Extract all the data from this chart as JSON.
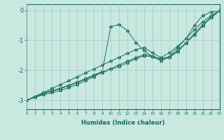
{
  "xlabel": "Humidex (Indice chaleur)",
  "background_color": "#c8e8e0",
  "line_color": "#1a6b5a",
  "grid_color": "#a0c8c0",
  "xlim": [
    0,
    23
  ],
  "ylim": [
    -3.3,
    0.2
  ],
  "xticks": [
    0,
    1,
    2,
    3,
    4,
    5,
    6,
    7,
    8,
    9,
    10,
    11,
    12,
    13,
    14,
    15,
    16,
    17,
    18,
    19,
    20,
    21,
    22,
    23
  ],
  "ytick_vals": [
    0,
    -1,
    -2,
    -3
  ],
  "ytick_labels": [
    "0",
    "-1",
    "-2",
    "-3"
  ],
  "series": [
    {
      "x": [
        0,
        1,
        2,
        3,
        4,
        5,
        6,
        7,
        8,
        9,
        10,
        11,
        12,
        13,
        14,
        15,
        16,
        17,
        18,
        19,
        20,
        21,
        22,
        23
      ],
      "y": [
        -3.0,
        -2.9,
        -2.82,
        -2.75,
        -2.68,
        -2.58,
        -2.48,
        -2.35,
        -2.22,
        -2.05,
        -0.55,
        -0.48,
        -0.68,
        -1.08,
        -1.35,
        -1.55,
        -1.62,
        -1.55,
        -1.25,
        -0.95,
        -0.5,
        -0.18,
        -0.06,
        -0.02
      ]
    },
    {
      "x": [
        0,
        1,
        2,
        3,
        4,
        5,
        6,
        7,
        8,
        9,
        10,
        11,
        12,
        13,
        14,
        15,
        16,
        17,
        18,
        19,
        20,
        21,
        22,
        23
      ],
      "y": [
        -3.0,
        -2.87,
        -2.74,
        -2.61,
        -2.48,
        -2.35,
        -2.22,
        -2.09,
        -1.96,
        -1.83,
        -1.7,
        -1.57,
        -1.44,
        -1.31,
        -1.25,
        -1.42,
        -1.58,
        -1.42,
        -1.2,
        -0.95,
        -0.65,
        -0.38,
        -0.18,
        -0.02
      ]
    },
    {
      "x": [
        0,
        1,
        2,
        3,
        4,
        5,
        6,
        7,
        8,
        9,
        10,
        11,
        12,
        13,
        14,
        15,
        16,
        17,
        18,
        19,
        20,
        21,
        22,
        23
      ],
      "y": [
        -3.0,
        -2.88,
        -2.76,
        -2.68,
        -2.6,
        -2.5,
        -2.4,
        -2.28,
        -2.16,
        -2.05,
        -1.95,
        -1.82,
        -1.7,
        -1.58,
        -1.48,
        -1.52,
        -1.65,
        -1.55,
        -1.35,
        -1.08,
        -0.78,
        -0.48,
        -0.22,
        -0.02
      ]
    },
    {
      "x": [
        0,
        2,
        3,
        4,
        5,
        6,
        7,
        8,
        9,
        10,
        11,
        12,
        13,
        14,
        15,
        16,
        17,
        18,
        19,
        20,
        21,
        22,
        23
      ],
      "y": [
        -3.0,
        -2.78,
        -2.7,
        -2.62,
        -2.52,
        -2.42,
        -2.3,
        -2.18,
        -2.08,
        -1.98,
        -1.88,
        -1.75,
        -1.62,
        -1.52,
        -1.55,
        -1.68,
        -1.58,
        -1.38,
        -1.1,
        -0.82,
        -0.52,
        -0.25,
        -0.02
      ]
    }
  ]
}
